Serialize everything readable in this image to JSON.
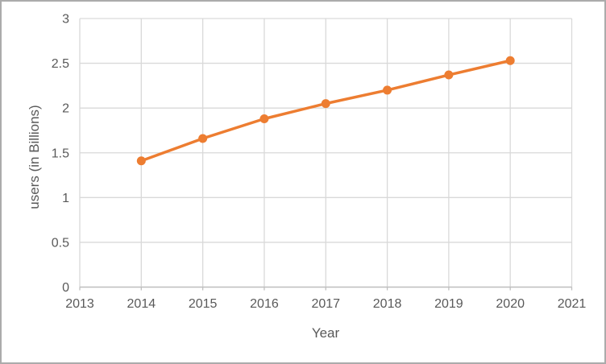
{
  "window": {
    "background_color": "#ffffff",
    "border_color": "#ababab"
  },
  "chart_data": {
    "type": "line",
    "title": "",
    "xlabel": "Year",
    "ylabel": "users (in Billions)",
    "x": [
      2014,
      2015,
      2016,
      2017,
      2018,
      2019,
      2020
    ],
    "series": [
      {
        "name": "users",
        "values": [
          1.41,
          1.66,
          1.88,
          2.05,
          2.2,
          2.37,
          2.53
        ],
        "color": "#ED7D31",
        "marker": "circle"
      }
    ],
    "xlim": [
      2013,
      2021
    ],
    "ylim": [
      0,
      3
    ],
    "x_ticks": [
      2013,
      2014,
      2015,
      2016,
      2017,
      2018,
      2019,
      2020,
      2021
    ],
    "y_ticks": [
      0,
      0.5,
      1,
      1.5,
      2,
      2.5,
      3
    ],
    "y_tick_labels": [
      "0",
      "0.5",
      "1",
      "1.5",
      "2",
      "2.5",
      "3"
    ],
    "grid": true,
    "legend_position": "none",
    "gridline_color": "#D9D9D9",
    "axis_line_color": "#BFBFBF",
    "text_color": "#595959"
  }
}
